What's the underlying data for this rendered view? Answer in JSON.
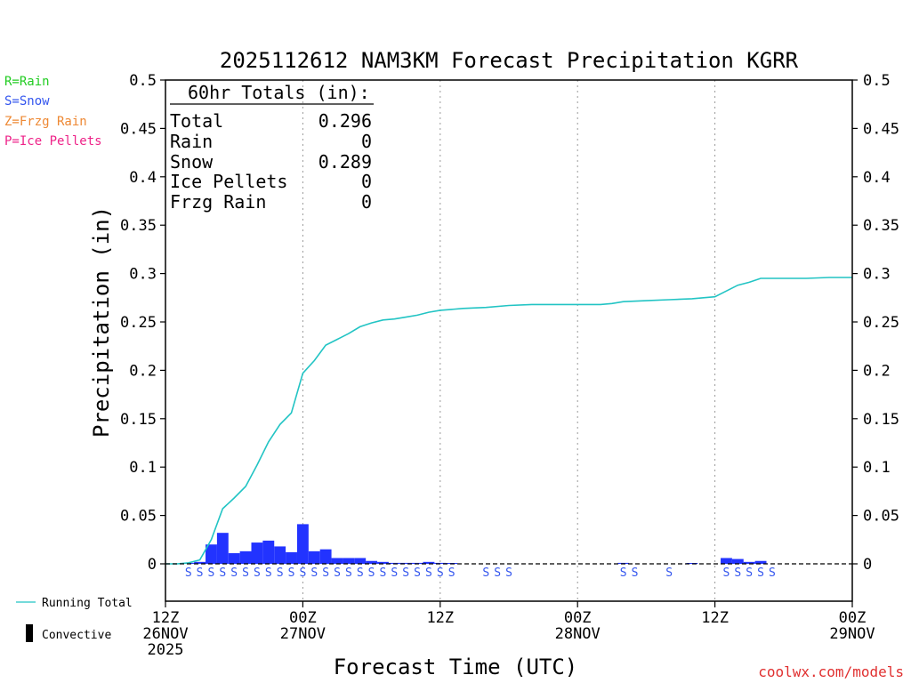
{
  "colors": {
    "rain": "#22cc22",
    "snow": "#3355ee",
    "frzg_rain": "#ee8833",
    "ice_pellets": "#ee2288",
    "bar": "#2233ff",
    "running_total": "#22c4c4",
    "watermark": "#e03030"
  },
  "legend_left": {
    "rain": "R=Rain",
    "snow": "S=Snow",
    "frzg_rain": "Z=Frzg Rain",
    "ice_pellets": "P=Ice Pellets"
  },
  "legend_bottom": {
    "running_total": "Running Total",
    "convective": "Convective"
  },
  "totals": {
    "header": "60hr Totals (in):",
    "rows": [
      {
        "label": "Total",
        "value": "0.296"
      },
      {
        "label": "Rain",
        "value": "0"
      },
      {
        "label": "Snow",
        "value": "0.289"
      },
      {
        "label": "Ice Pellets",
        "value": "0"
      },
      {
        "label": "Frzg Rain",
        "value": "0"
      }
    ]
  },
  "watermark": "coolwx.com/models",
  "chart_data": {
    "type": "bar",
    "title": "2025112612 NAM3KM Forecast Precipitation KGRR",
    "xlabel": "Forecast Time (UTC)",
    "ylabel": "Precipitation (in)",
    "ylim": [
      0,
      0.5
    ],
    "y_ticks": [
      0,
      0.05,
      0.1,
      0.15,
      0.2,
      0.25,
      0.3,
      0.35,
      0.4,
      0.45,
      0.5
    ],
    "y_tick_labels": [
      "0",
      "0.05",
      "0.1",
      "0.15",
      "0.2",
      "0.25",
      "0.3",
      "0.35",
      "0.4",
      "0.45",
      "0.5"
    ],
    "xlim_hours": [
      0,
      60
    ],
    "x_ticks": [
      {
        "hour": 0,
        "lines": [
          "12Z",
          "26NOV",
          "2025"
        ]
      },
      {
        "hour": 12,
        "lines": [
          "00Z",
          "27NOV"
        ]
      },
      {
        "hour": 24,
        "lines": [
          "12Z"
        ]
      },
      {
        "hour": 36,
        "lines": [
          "00Z",
          "28NOV"
        ]
      },
      {
        "hour": 48,
        "lines": [
          "12Z"
        ]
      },
      {
        "hour": 60,
        "lines": [
          "00Z",
          "29NOV"
        ]
      }
    ],
    "gridlines_hours": [
      12,
      24,
      36,
      48
    ],
    "series": [
      {
        "name": "Hourly Precipitation",
        "kind": "bar",
        "hours": [
          2,
          3,
          4,
          5,
          6,
          7,
          8,
          9,
          10,
          11,
          12,
          13,
          14,
          15,
          16,
          17,
          18,
          19,
          20,
          21,
          22,
          23,
          24,
          25,
          40,
          46,
          49,
          50,
          51,
          52
        ],
        "values": [
          0.001,
          0.002,
          0.02,
          0.032,
          0.011,
          0.013,
          0.022,
          0.024,
          0.018,
          0.012,
          0.041,
          0.013,
          0.015,
          0.006,
          0.006,
          0.006,
          0.003,
          0.002,
          0.001,
          0.001,
          0.001,
          0.002,
          0.001,
          0.0005,
          0.001,
          0.0005,
          0.006,
          0.005,
          0.002,
          0.003
        ]
      },
      {
        "name": "Running Total",
        "kind": "line",
        "hours": [
          0,
          1,
          2,
          3,
          4,
          5,
          6,
          7,
          8,
          9,
          10,
          11,
          12,
          13,
          14,
          15,
          16,
          17,
          18,
          19,
          20,
          21,
          22,
          23,
          24,
          25,
          26,
          28,
          30,
          32,
          34,
          36,
          38,
          39,
          40,
          42,
          44,
          46,
          47,
          48,
          49,
          50,
          51,
          52,
          53,
          54,
          56,
          58,
          60
        ],
        "values": [
          0,
          0,
          0.001,
          0.004,
          0.025,
          0.057,
          0.068,
          0.08,
          0.102,
          0.126,
          0.144,
          0.156,
          0.197,
          0.21,
          0.226,
          0.232,
          0.238,
          0.245,
          0.249,
          0.252,
          0.253,
          0.255,
          0.257,
          0.26,
          0.262,
          0.263,
          0.264,
          0.265,
          0.267,
          0.268,
          0.268,
          0.268,
          0.268,
          0.269,
          0.271,
          0.272,
          0.273,
          0.274,
          0.275,
          0.276,
          0.282,
          0.288,
          0.291,
          0.295,
          0.295,
          0.295,
          0.295,
          0.296,
          0.296
        ]
      }
    ],
    "ptype_markers": {
      "symbol": "S",
      "hours": [
        2,
        3,
        4,
        5,
        6,
        7,
        8,
        9,
        10,
        11,
        12,
        13,
        14,
        15,
        16,
        17,
        18,
        19,
        20,
        21,
        22,
        23,
        24,
        25,
        28,
        29,
        30,
        40,
        41,
        44,
        49,
        50,
        51,
        52,
        53
      ]
    }
  }
}
